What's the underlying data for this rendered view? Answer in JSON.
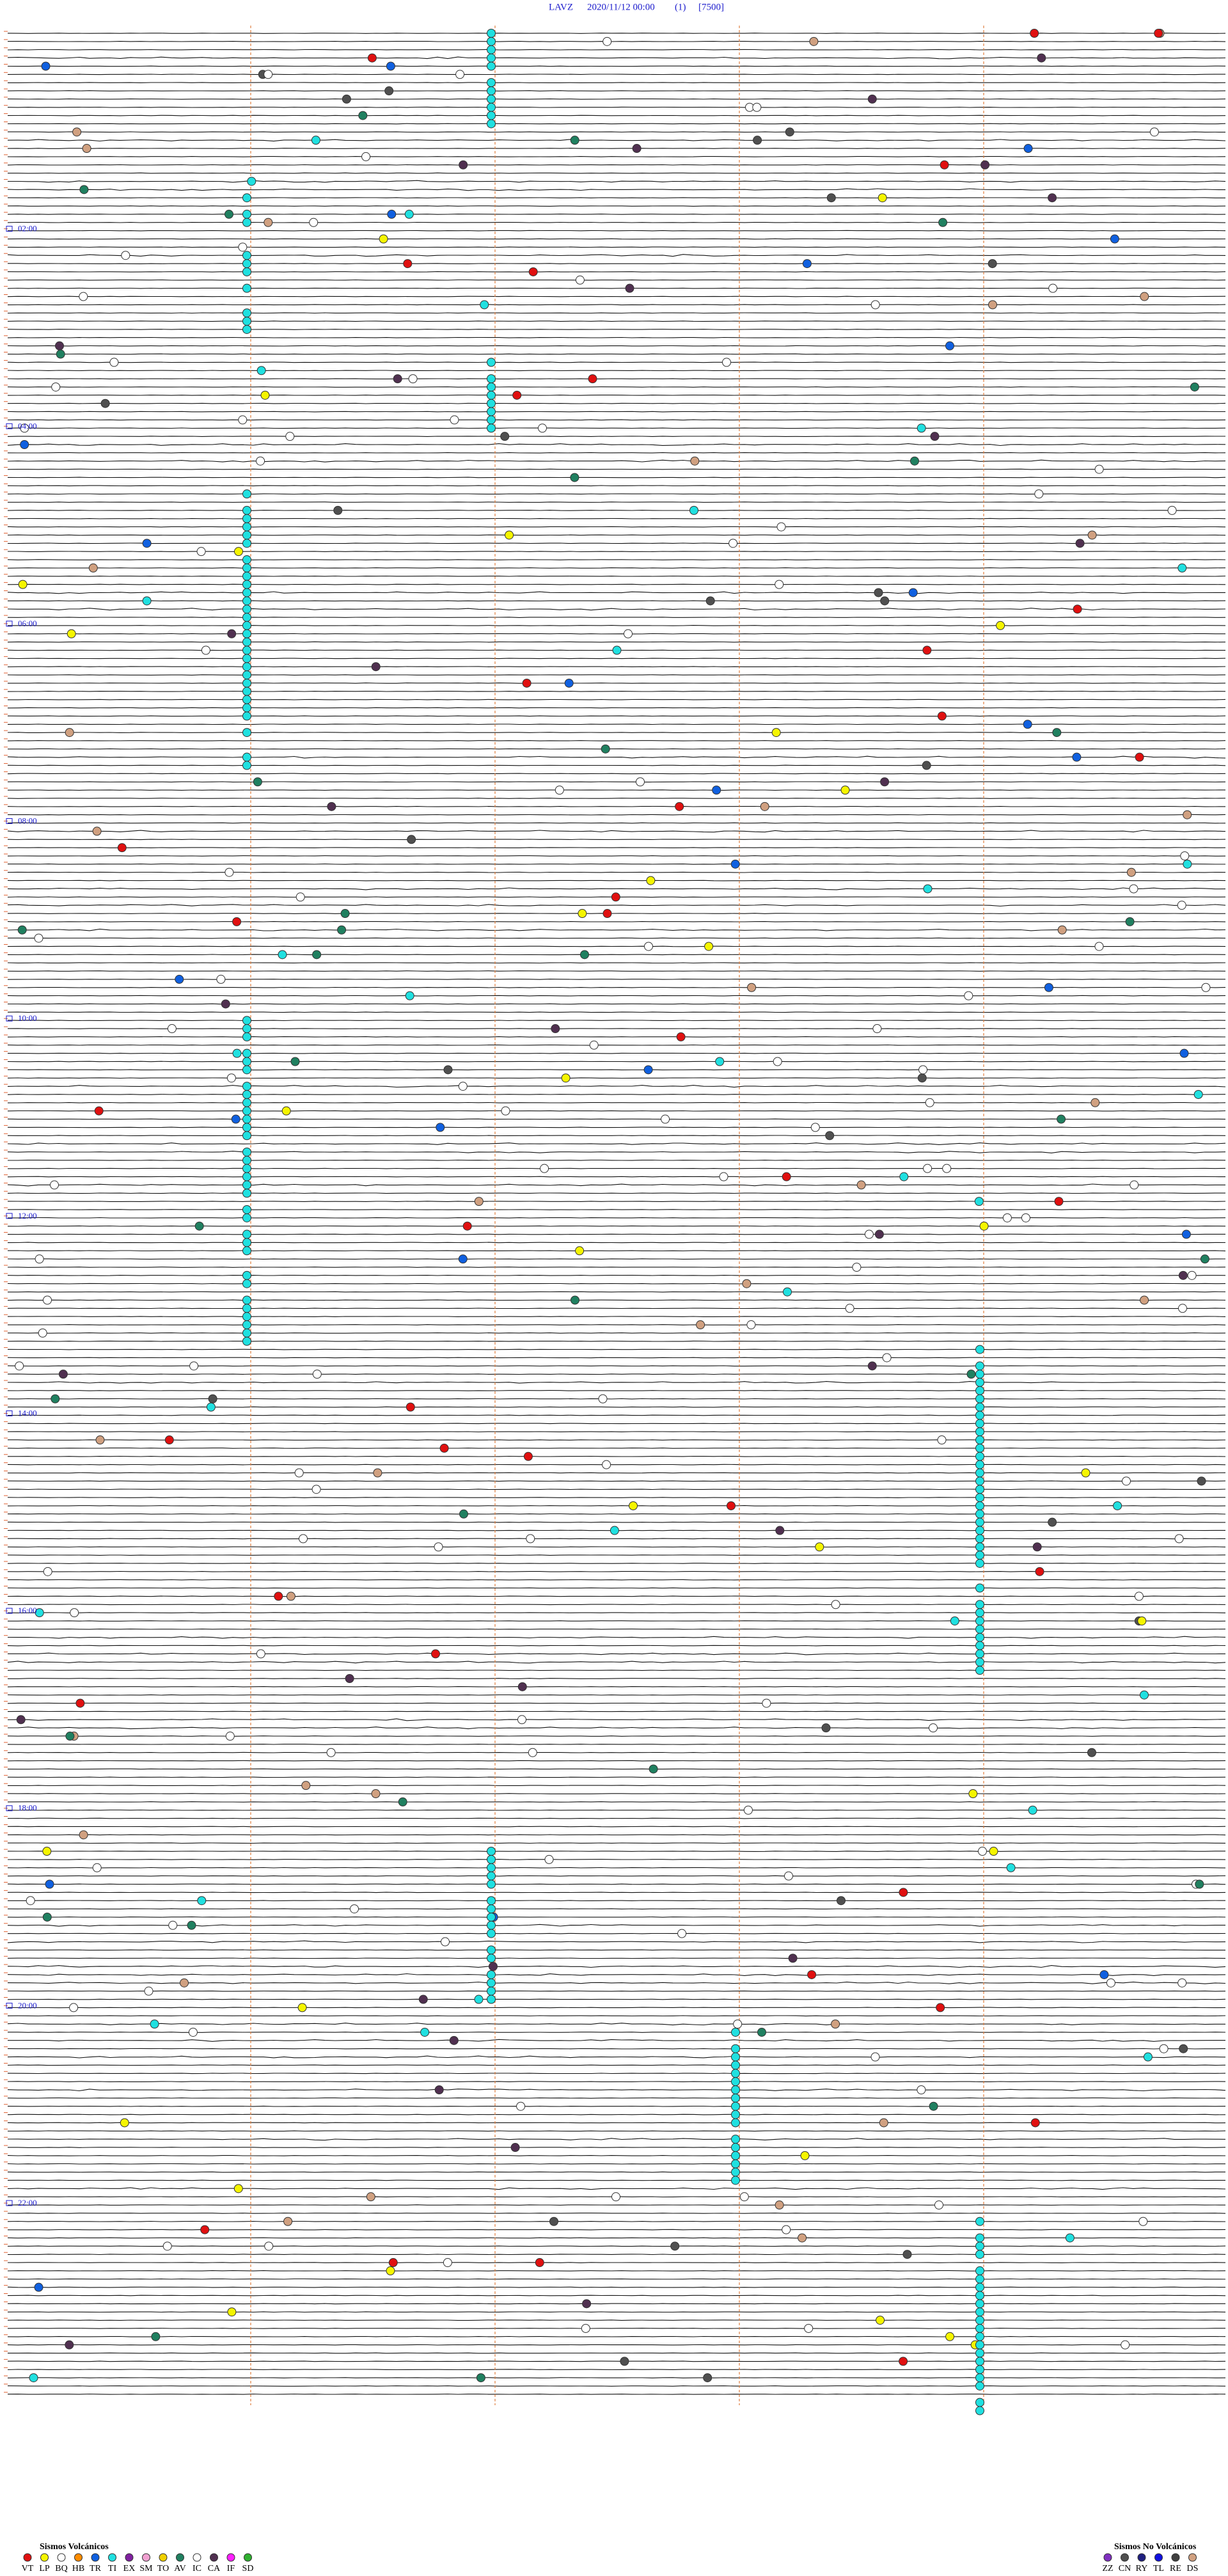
{
  "header": {
    "station": "LAVZ",
    "datetime": "2020/11/12 00:00",
    "channel": "(1)",
    "scale": "[7500]"
  },
  "hour_labels": [
    "02:00",
    "04:00",
    "06:00",
    "08:00",
    "10:00",
    "12:00",
    "14:00",
    "16:00",
    "18:00",
    "20:00",
    "22:00"
  ],
  "legend_volcanic": {
    "title": "Sismos Volcánicos",
    "entries": [
      {
        "code": "VT",
        "color": "#e01010"
      },
      {
        "code": "LP",
        "color": "#f5f500"
      },
      {
        "code": "BQ",
        "color": "#ffffff"
      },
      {
        "code": "HB",
        "color": "#ff8c00"
      },
      {
        "code": "TR",
        "color": "#1060e0"
      },
      {
        "code": "TI",
        "color": "#20e0e0"
      },
      {
        "code": "EX",
        "color": "#8020a0"
      },
      {
        "code": "SM",
        "color": "#f0a0d0"
      },
      {
        "code": "TO",
        "color": "#f0d000"
      },
      {
        "code": "AV",
        "color": "#208060"
      },
      {
        "code": "IC",
        "color": "#ffffff"
      },
      {
        "code": "CA",
        "color": "#503050"
      },
      {
        "code": "IF",
        "color": "#ff20ff"
      },
      {
        "code": "SD",
        "color": "#30b030"
      }
    ]
  },
  "legend_non_volcanic": {
    "title": "Sismos No Volcánicos",
    "entries": [
      {
        "code": "ZZ",
        "color": "#8030c0"
      },
      {
        "code": "CN",
        "color": "#505050"
      },
      {
        "code": "RY",
        "color": "#202080"
      },
      {
        "code": "TL",
        "color": "#1010e0"
      },
      {
        "code": "RE",
        "color": "#404040"
      },
      {
        "code": "DS",
        "color": "#d0a080"
      }
    ]
  }
}
